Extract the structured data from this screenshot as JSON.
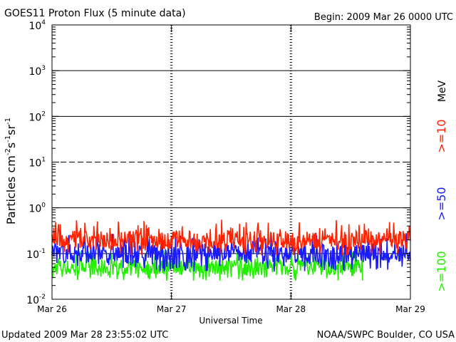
{
  "header": {
    "title": "GOES11 Proton Flux (5 minute data)",
    "begin": "Begin: 2009 Mar 26 0000 UTC"
  },
  "footer": {
    "updated": "Updated 2009 Mar 28 23:55:02 UTC",
    "credit": "NOAA/SWPC Boulder, CO USA"
  },
  "chart_data": {
    "type": "line",
    "title": "GOES11 Proton Flux (5 minute data)",
    "xlabel": "Universal Time",
    "ylabel_parts": [
      "Particles cm",
      "-2",
      "s",
      "-1",
      "sr",
      "-1"
    ],
    "y_scale": "log",
    "ylim": [
      0.01,
      10000
    ],
    "y_ticks": [
      {
        "base": "10",
        "exp": "-2",
        "value": 0.01
      },
      {
        "base": "10",
        "exp": "-1",
        "value": 0.1
      },
      {
        "base": "10",
        "exp": "0",
        "value": 1
      },
      {
        "base": "10",
        "exp": "1",
        "value": 10
      },
      {
        "base": "10",
        "exp": "2",
        "value": 100
      },
      {
        "base": "10",
        "exp": "3",
        "value": 1000
      },
      {
        "base": "10",
        "exp": "4",
        "value": 10000
      }
    ],
    "x_ticks": [
      "Mar 26",
      "Mar 27",
      "Mar 28",
      "Mar 29"
    ],
    "x_days": 3,
    "threshold_lines": [
      {
        "value": 10000,
        "style": "solid"
      },
      {
        "value": 1000,
        "style": "solid"
      },
      {
        "value": 100,
        "style": "solid"
      },
      {
        "value": 10,
        "style": "dashed"
      },
      {
        "value": 1,
        "style": "solid"
      },
      {
        "value": 0.1,
        "style": "solid"
      }
    ],
    "unit_label": "MeV",
    "grid": true,
    "series": [
      {
        "name": ">=10",
        "color": "#ff2200",
        "typical": 0.2,
        "min": 0.09,
        "max": 0.55,
        "t_end": 3.0
      },
      {
        "name": ">=50",
        "color": "#1a1aff",
        "typical": 0.1,
        "min": 0.04,
        "max": 0.28,
        "t_end": 3.0
      },
      {
        "name": ">=100",
        "color": "#22ee00",
        "typical": 0.05,
        "min": 0.025,
        "max": 0.12,
        "t_end": 2.6
      }
    ]
  }
}
